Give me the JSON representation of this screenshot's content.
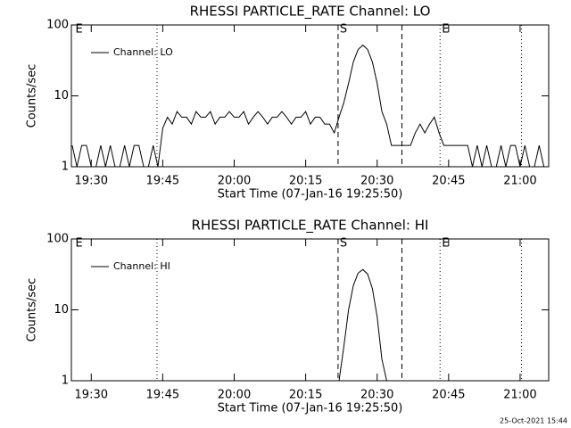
{
  "chart_data": [
    {
      "type": "line",
      "title": "RHESSI PARTICLE_RATE Channel: LO",
      "x_label": "Start Time (07-Jan-16 19:25:50)",
      "y_label": "Counts/sec",
      "log_y": true,
      "legend": "upper left",
      "xlim": [
        1165.83,
        1266
      ],
      "ylim": [
        1,
        100
      ],
      "yticks": [
        1,
        10,
        100
      ],
      "xticks": [
        {
          "value": 1170,
          "label": "19:30"
        },
        {
          "value": 1185,
          "label": "19:45"
        },
        {
          "value": 1200,
          "label": "20:00"
        },
        {
          "value": 1215,
          "label": "20:15"
        },
        {
          "value": 1230,
          "label": "20:30"
        },
        {
          "value": 1245,
          "label": "20:45"
        },
        {
          "value": 1260,
          "label": "21:00"
        }
      ],
      "annotations": [
        {
          "x": 1166.3,
          "style": "none",
          "label": "E"
        },
        {
          "x": 1183.8,
          "style": "dotted"
        },
        {
          "x": 1221.8,
          "style": "dashed",
          "label": "S"
        },
        {
          "x": 1235.2,
          "style": "dashed"
        },
        {
          "x": 1243.2,
          "style": "dotted",
          "label": "E"
        },
        {
          "x": 1260.3,
          "style": "dotted"
        }
      ],
      "x": [
        1166,
        1167,
        1168,
        1169,
        1170,
        1171,
        1172,
        1173,
        1174,
        1175,
        1176,
        1177,
        1178,
        1179,
        1180,
        1181,
        1182,
        1183,
        1184,
        1185,
        1186,
        1187,
        1188,
        1189,
        1190,
        1191,
        1192,
        1193,
        1194,
        1195,
        1196,
        1197,
        1198,
        1199,
        1200,
        1201,
        1202,
        1203,
        1204,
        1205,
        1206,
        1207,
        1208,
        1209,
        1210,
        1211,
        1212,
        1213,
        1214,
        1215,
        1216,
        1217,
        1218,
        1219,
        1220,
        1221,
        1222,
        1223,
        1224,
        1225,
        1226,
        1227,
        1228,
        1229,
        1230,
        1231,
        1232,
        1233,
        1234,
        1235,
        1236,
        1237,
        1238,
        1239,
        1240,
        1241,
        1242,
        1243,
        1244,
        1245,
        1246,
        1247,
        1248,
        1249,
        1250,
        1251,
        1252,
        1253,
        1254,
        1255,
        1256,
        1257,
        1258,
        1259,
        1260,
        1261,
        1262,
        1263,
        1264,
        1265
      ],
      "series": [
        {
          "name": "Channel: LO",
          "color": "#000000",
          "values": [
            2,
            1,
            2,
            2,
            1,
            1,
            2,
            1,
            2,
            1,
            1,
            2,
            1,
            2,
            2,
            1,
            1,
            2,
            1,
            3.5,
            5,
            4,
            6,
            5,
            5,
            4,
            6,
            5,
            5,
            6,
            4,
            5,
            5,
            6,
            5,
            5,
            6,
            4,
            5,
            6,
            5,
            4,
            5,
            5,
            6,
            5,
            4,
            5,
            5,
            6,
            4,
            5,
            5,
            4,
            4,
            3,
            5,
            8,
            15,
            30,
            45,
            52,
            45,
            30,
            15,
            6,
            4,
            2,
            2,
            2,
            2,
            2,
            3,
            4,
            3,
            4,
            5,
            3,
            2,
            2,
            2,
            2,
            2,
            2,
            1,
            2,
            1,
            2,
            1,
            1,
            2,
            1,
            2,
            2,
            1,
            2,
            1,
            1,
            2,
            1
          ]
        }
      ]
    },
    {
      "type": "line",
      "title": "RHESSI PARTICLE_RATE Channel: HI",
      "x_label": "Start Time (07-Jan-16 19:25:50)",
      "y_label": "Counts/sec",
      "log_y": true,
      "legend": "upper left",
      "xlim": [
        1165.83,
        1266
      ],
      "ylim": [
        1,
        100
      ],
      "yticks": [
        1,
        10,
        100
      ],
      "xticks": [
        {
          "value": 1170,
          "label": "19:30"
        },
        {
          "value": 1185,
          "label": "19:45"
        },
        {
          "value": 1200,
          "label": "20:00"
        },
        {
          "value": 1215,
          "label": "20:15"
        },
        {
          "value": 1230,
          "label": "20:30"
        },
        {
          "value": 1245,
          "label": "20:45"
        },
        {
          "value": 1260,
          "label": "21:00"
        }
      ],
      "annotations": [
        {
          "x": 1166.3,
          "style": "none",
          "label": "E"
        },
        {
          "x": 1183.8,
          "style": "dotted"
        },
        {
          "x": 1221.8,
          "style": "dashed",
          "label": "S"
        },
        {
          "x": 1235.2,
          "style": "dashed"
        },
        {
          "x": 1243.2,
          "style": "dotted",
          "label": "E"
        },
        {
          "x": 1260.3,
          "style": "dotted"
        }
      ],
      "x": [
        1222,
        1223,
        1224,
        1225,
        1226,
        1227,
        1228,
        1229,
        1230,
        1231,
        1232
      ],
      "series": [
        {
          "name": "Channel: HI",
          "color": "#000000",
          "values": [
            1,
            3,
            10,
            22,
            33,
            37,
            32,
            20,
            8,
            2,
            1
          ]
        }
      ]
    }
  ],
  "footer": "25-Oct-2021 15:44"
}
